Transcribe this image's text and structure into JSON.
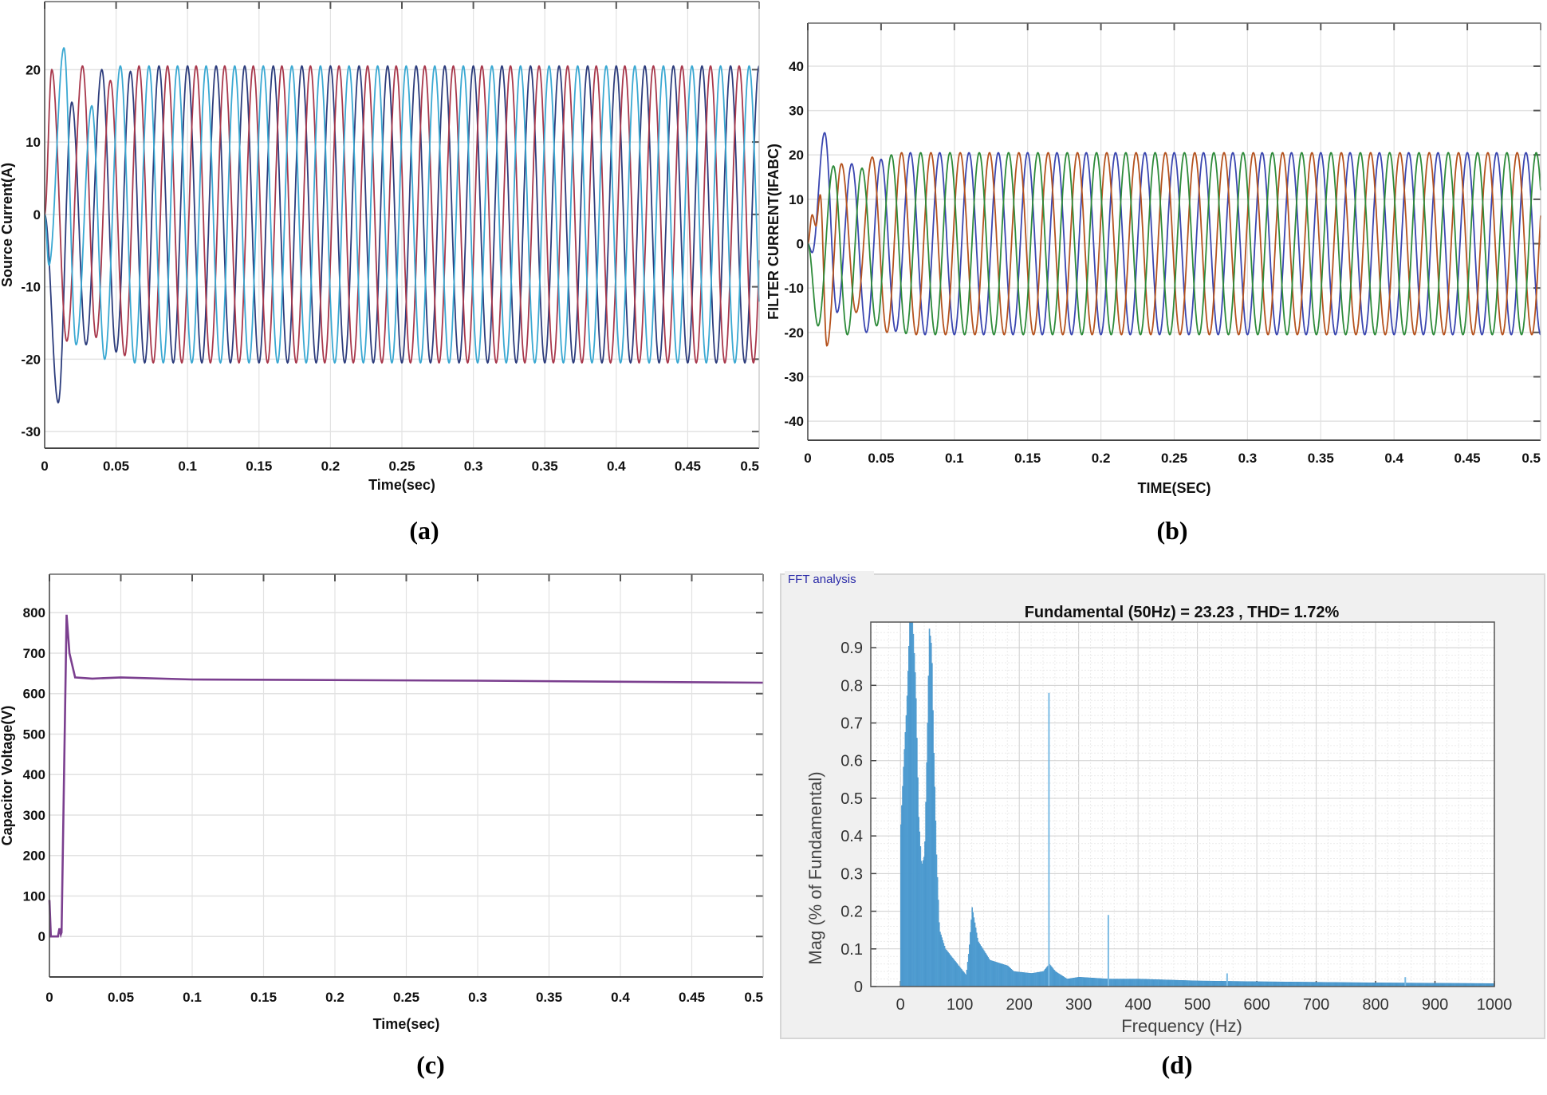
{
  "chart_data": [
    {
      "type": "line",
      "caption": "(a)",
      "xlabel": "Time(sec)",
      "ylabel": "Source Current(A)",
      "xlim": [
        0,
        0.5
      ],
      "ylim": [
        -32.3,
        29.4
      ],
      "xticks": [
        "0",
        "0.05",
        "0.1",
        "0.15",
        "0.2",
        "0.25",
        "0.3",
        "0.35",
        "0.4",
        "0.45",
        "0.5"
      ],
      "yticks": [
        "20",
        "10",
        "0",
        "-10",
        "-20",
        "-30"
      ],
      "grid": true,
      "steady_state": {
        "frequency_hz": 50,
        "amplitude": 20.5
      },
      "series": [
        {
          "color": "#2c3c7c",
          "transient_extrema": [
            [
              0,
              0
            ],
            [
              0.0095,
              -26
            ],
            [
              0.019,
              15.5
            ],
            [
              0.029,
              -18
            ],
            [
              0.04,
              20
            ],
            [
              0.05,
              -19
            ]
          ]
        },
        {
          "color": "#a8384c",
          "transient_extrema": [
            [
              0,
              0
            ],
            [
              0.005,
              20
            ],
            [
              0.0155,
              -17.5
            ],
            [
              0.0265,
              20.5
            ],
            [
              0.036,
              -17
            ],
            [
              0.046,
              18.5
            ]
          ]
        },
        {
          "color": "#3aa8d2",
          "transient_extrema": [
            [
              0,
              0
            ],
            [
              0.003,
              -7
            ],
            [
              0.0135,
              23
            ],
            [
              0.022,
              -18
            ],
            [
              0.033,
              15
            ],
            [
              0.042,
              -20
            ],
            [
              0.053,
              20.5
            ]
          ]
        }
      ]
    },
    {
      "type": "line",
      "caption": "(b)",
      "xlabel": "TIME(SEC)",
      "ylabel": "FILTER CURRENT(IFABC)",
      "xlim": [
        0,
        0.5
      ],
      "ylim": [
        -44.3,
        49.7
      ],
      "xticks": [
        "0",
        "0.05",
        "0.1",
        "0.15",
        "0.2",
        "0.25",
        "0.3",
        "0.35",
        "0.4",
        "0.45",
        "0.5"
      ],
      "yticks": [
        "40",
        "30",
        "20",
        "10",
        "0",
        "-10",
        "-20",
        "-30",
        "-40"
      ],
      "grid": true,
      "steady_state": {
        "frequency_hz": 50,
        "amplitude": 20.5
      },
      "series": [
        {
          "color": "#3a46b0",
          "transient_extrema": [
            [
              0,
              0
            ],
            [
              0.003,
              -2
            ],
            [
              0.0115,
              25
            ],
            [
              0.02,
              -15.5
            ],
            [
              0.03,
              18
            ],
            [
              0.04,
              -20
            ],
            [
              0.05,
              19
            ]
          ]
        },
        {
          "color": "#b5531f",
          "transient_extrema": [
            [
              0,
              0
            ],
            [
              0.003,
              6.5
            ],
            [
              0.0055,
              4
            ],
            [
              0.0085,
              11
            ],
            [
              0.013,
              -23
            ],
            [
              0.023,
              18
            ],
            [
              0.033,
              -15.5
            ],
            [
              0.044,
              19.5
            ]
          ]
        },
        {
          "color": "#2e8b3a",
          "transient_extrema": [
            [
              0,
              0
            ],
            [
              0.007,
              -18.5
            ],
            [
              0.0175,
              17.5
            ],
            [
              0.027,
              -20.5
            ],
            [
              0.037,
              17
            ],
            [
              0.047,
              -18.5
            ],
            [
              0.057,
              20
            ]
          ]
        }
      ]
    },
    {
      "type": "line",
      "caption": "(c)",
      "xlabel": "Time(sec)",
      "ylabel": "Capacitor Voltage(V)",
      "xlim": [
        0,
        0.5
      ],
      "ylim": [
        -100,
        895
      ],
      "xticks": [
        "0",
        "0.05",
        "0.1",
        "0.15",
        "0.2",
        "0.25",
        "0.3",
        "0.35",
        "0.4",
        "0.45",
        "0.5"
      ],
      "yticks": [
        "800",
        "700",
        "600",
        "500",
        "400",
        "300",
        "200",
        "100",
        "0"
      ],
      "grid": true,
      "series": [
        {
          "color": "#7b3f8f",
          "points": [
            [
              0,
              90
            ],
            [
              0.001,
              0
            ],
            [
              0.006,
              0
            ],
            [
              0.007,
              20
            ],
            [
              0.008,
              5
            ],
            [
              0.0085,
              10
            ],
            [
              0.012,
              795
            ],
            [
              0.014,
              700
            ],
            [
              0.018,
              640
            ],
            [
              0.03,
              637
            ],
            [
              0.05,
              640
            ],
            [
              0.1,
              635
            ],
            [
              0.3,
              632
            ],
            [
              0.5,
              627
            ]
          ]
        }
      ]
    },
    {
      "type": "bar",
      "caption": "(d)",
      "panel_title": "FFT analysis",
      "title": "Fundamental (50Hz) = 23.23 , THD= 1.72%",
      "xlabel": "Frequency (Hz)",
      "ylabel": "Mag (% of Fundamental)",
      "xlim": [
        -50,
        1000
      ],
      "ylim": [
        0,
        0.968
      ],
      "xticks": [
        "0",
        "100",
        "200",
        "300",
        "400",
        "500",
        "600",
        "700",
        "800",
        "900",
        "1000"
      ],
      "yticks": [
        "0",
        "0.1",
        "0.2",
        "0.3",
        "0.4",
        "0.5",
        "0.6",
        "0.7",
        "0.8",
        "0.9"
      ],
      "grid": true,
      "color": "#5aa6d8",
      "spectrum_envelope": [
        [
          0,
          0.43
        ],
        [
          5,
          0.6
        ],
        [
          10,
          0.75
        ],
        [
          15,
          0.97
        ],
        [
          20,
          0.97
        ],
        [
          25,
          0.8
        ],
        [
          30,
          0.45
        ],
        [
          35,
          0.32
        ],
        [
          40,
          0.35
        ],
        [
          45,
          0.7
        ],
        [
          48,
          0.95
        ],
        [
          52,
          0.9
        ],
        [
          55,
          0.65
        ],
        [
          60,
          0.35
        ],
        [
          65,
          0.15
        ],
        [
          75,
          0.1
        ],
        [
          90,
          0.07
        ],
        [
          105,
          0.04
        ],
        [
          110,
          0.03
        ],
        [
          115,
          0.1
        ],
        [
          120,
          0.21
        ],
        [
          130,
          0.12
        ],
        [
          150,
          0.07
        ],
        [
          180,
          0.055
        ],
        [
          190,
          0.04
        ],
        [
          220,
          0.035
        ],
        [
          240,
          0.04
        ],
        [
          250,
          0.06
        ],
        [
          260,
          0.04
        ],
        [
          280,
          0.02
        ],
        [
          300,
          0.025
        ],
        [
          350,
          0.02
        ],
        [
          400,
          0.02
        ],
        [
          500,
          0.015
        ],
        [
          600,
          0.013
        ],
        [
          800,
          0.01
        ],
        [
          1000,
          0.008
        ]
      ],
      "spikes": [
        [
          250,
          0.78
        ],
        [
          350,
          0.19
        ],
        [
          550,
          0.035
        ],
        [
          850,
          0.025
        ]
      ]
    }
  ]
}
